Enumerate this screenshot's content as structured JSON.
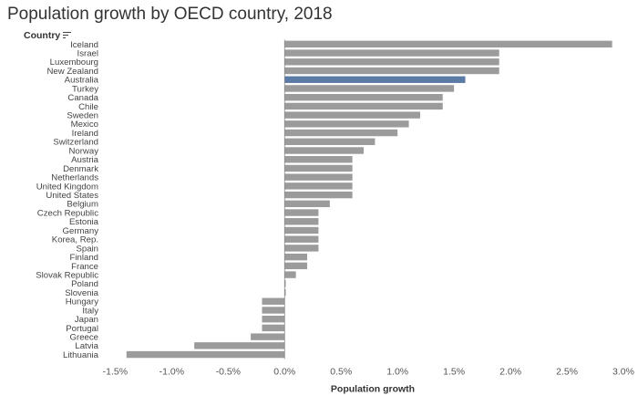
{
  "chart_data": {
    "type": "bar",
    "orientation": "horizontal",
    "title": "Population growth by OECD country, 2018",
    "category_header": "Country",
    "xlabel": "Population growth",
    "xlim": [
      -0.016,
      0.03
    ],
    "xticks": [
      -0.015,
      -0.01,
      -0.005,
      0.0,
      0.005,
      0.01,
      0.015,
      0.02,
      0.025,
      0.03
    ],
    "xtick_labels": [
      "-1.5%",
      "-1.0%",
      "-0.5%",
      "0.0%",
      "0.5%",
      "1.0%",
      "1.5%",
      "2.0%",
      "2.5%",
      "3.0%"
    ],
    "highlight": "Australia",
    "colors": {
      "bar": "#9b9b9b",
      "highlight": "#5b7ba6",
      "zero_line": "#888888"
    },
    "categories": [
      "Iceland",
      "Israel",
      "Luxembourg",
      "New Zealand",
      "Australia",
      "Turkey",
      "Canada",
      "Chile",
      "Sweden",
      "Mexico",
      "Ireland",
      "Switzerland",
      "Norway",
      "Austria",
      "Denmark",
      "Netherlands",
      "United Kingdom",
      "United States",
      "Belgium",
      "Czech Republic",
      "Estonia",
      "Germany",
      "Korea, Rep.",
      "Spain",
      "Finland",
      "France",
      "Slovak Republic",
      "Poland",
      "Slovenia",
      "Hungary",
      "Italy",
      "Japan",
      "Portugal",
      "Greece",
      "Latvia",
      "Lithuania"
    ],
    "values": [
      0.029,
      0.019,
      0.019,
      0.019,
      0.016,
      0.015,
      0.014,
      0.014,
      0.012,
      0.011,
      0.01,
      0.008,
      0.007,
      0.006,
      0.006,
      0.006,
      0.006,
      0.006,
      0.004,
      0.003,
      0.003,
      0.003,
      0.003,
      0.003,
      0.002,
      0.002,
      0.001,
      0.0001,
      0.0001,
      -0.002,
      -0.002,
      -0.002,
      -0.002,
      -0.003,
      -0.008,
      -0.014
    ]
  }
}
